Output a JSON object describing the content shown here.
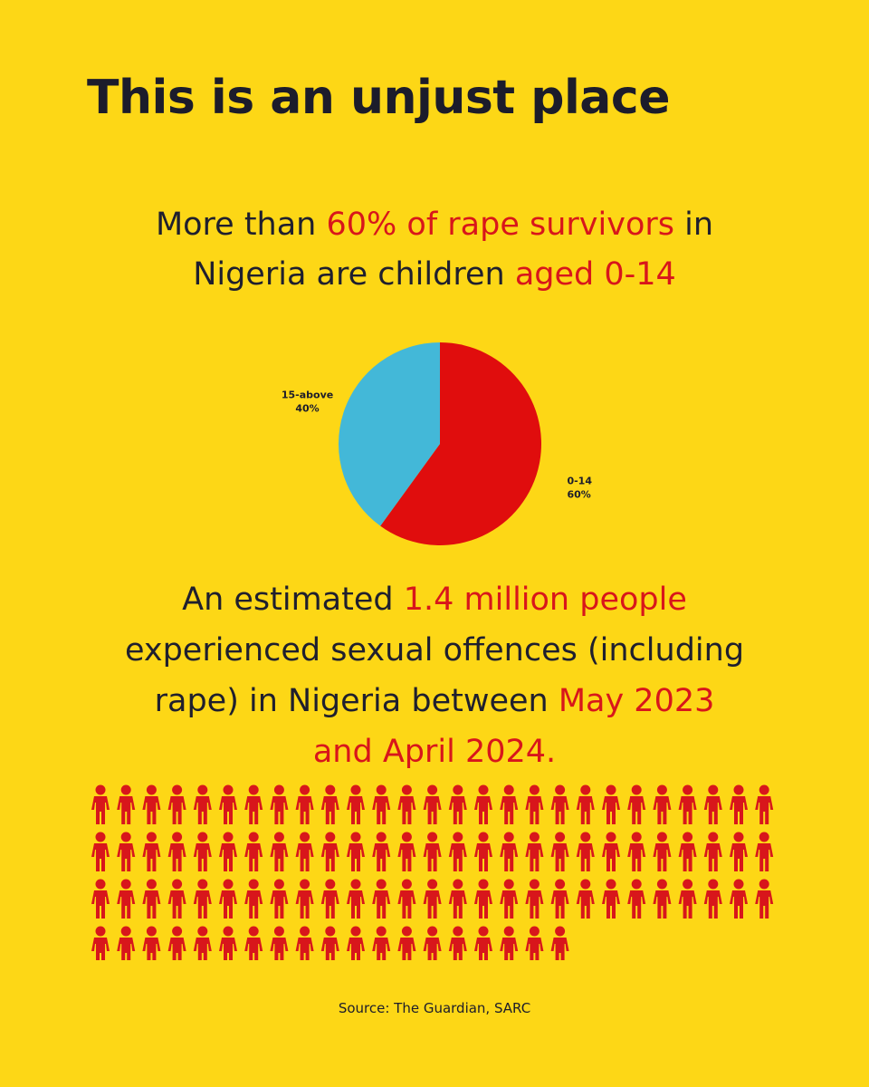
{
  "title": "This is an unjust place",
  "stat1": {
    "line1_a": "More than ",
    "line1_b": "60% of rape survivors",
    "line1_c": " in",
    "line2_a": "Nigeria are children ",
    "line2_b": "aged 0-14"
  },
  "chart_data": {
    "type": "pie",
    "title": "",
    "slices": [
      {
        "label": "0-14",
        "percent_label": "60%",
        "value": 60,
        "color": "#e00d0d"
      },
      {
        "label": "15-above",
        "percent_label": "40%",
        "value": 40,
        "color": "#43b8d8"
      }
    ]
  },
  "stat2": {
    "line1_a": "An estimated ",
    "line1_b": "1.4 million people",
    "line2": "experienced sexual offences (including",
    "line3_a": "rape) in Nigeria between ",
    "line3_b": "May 2023",
    "line4": "and April 2024."
  },
  "pictogram": {
    "icon": "person-icon",
    "color": "#d8161b",
    "rows": [
      27,
      27,
      27,
      19
    ]
  },
  "source": "Source: The Guardian, SARC",
  "colors": {
    "background": "#fdd716",
    "accent": "#d8161b",
    "text": "#1c1c2b"
  }
}
